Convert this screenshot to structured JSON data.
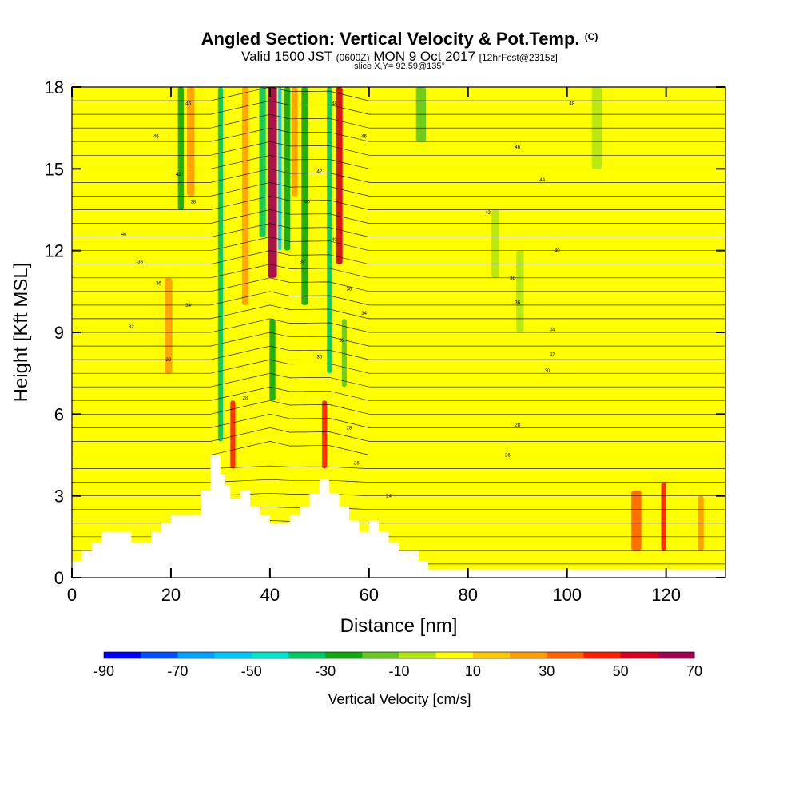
{
  "title": {
    "main": "Angled Section: Vertical Velocity & Pot.Temp.",
    "main_suffix": "(C)",
    "valid_prefix": "Valid 1500 JST",
    "valid_utc": "(0600Z)",
    "valid_date": "MON 9 Oct 2017",
    "forecast": "[12hrFcst@2315z]",
    "slice": "slice X,Y= 92,59@135°"
  },
  "chart_data": {
    "type": "heatmap",
    "xlabel": "Distance [nm]",
    "ylabel": "Height [Kft MSL]",
    "xlim": [
      0,
      132
    ],
    "ylim": [
      0,
      18
    ],
    "xticks": [
      0,
      20,
      40,
      60,
      80,
      100,
      120
    ],
    "yticks": [
      0,
      3,
      6,
      9,
      12,
      15,
      18
    ],
    "colorbar": {
      "label": "Vertical Velocity [cm/s]",
      "ticks": [
        -90,
        -70,
        -50,
        -30,
        -10,
        10,
        30,
        50,
        70
      ],
      "levels": [
        -90,
        -80,
        -70,
        -60,
        -50,
        -40,
        -30,
        -20,
        -10,
        0,
        10,
        20,
        30,
        40,
        50,
        60,
        70
      ],
      "colors": [
        "#0000ff",
        "#0050ff",
        "#00a0ff",
        "#00c8ff",
        "#00e6c8",
        "#00c864",
        "#10a810",
        "#64c820",
        "#b4e614",
        "#ffff00",
        "#ffc800",
        "#ffa000",
        "#ff6400",
        "#ff1e00",
        "#d2001e",
        "#a00050",
        "#500090"
      ]
    },
    "background_color_value": 5,
    "terrain_profile": {
      "x": [
        0,
        2,
        2,
        4,
        4,
        6,
        6,
        12,
        12,
        16,
        16,
        18,
        18,
        20,
        20,
        26,
        26,
        28,
        28,
        30,
        30,
        31,
        31,
        32,
        32,
        34,
        34,
        36,
        36,
        38,
        38,
        40,
        40,
        44,
        44,
        46,
        46,
        48,
        48,
        50,
        50,
        52,
        52,
        54,
        54,
        56,
        56,
        58,
        58,
        60,
        60,
        62,
        62,
        64,
        64,
        66,
        66,
        70,
        70,
        72,
        72,
        132
      ],
      "height": [
        0.6,
        0.6,
        1.0,
        1.0,
        1.3,
        1.3,
        1.7,
        1.7,
        1.3,
        1.3,
        1.7,
        1.7,
        2.0,
        2.0,
        2.3,
        2.3,
        3.2,
        3.2,
        4.5,
        4.5,
        3.8,
        3.8,
        3.4,
        3.4,
        2.9,
        2.9,
        3.2,
        3.2,
        2.6,
        2.6,
        2.3,
        2.3,
        2.0,
        2.0,
        2.3,
        2.3,
        2.6,
        2.6,
        3.1,
        3.1,
        3.6,
        3.6,
        3.1,
        3.1,
        2.6,
        2.6,
        2.1,
        2.1,
        1.7,
        1.7,
        2.1,
        2.1,
        1.7,
        1.7,
        1.3,
        1.3,
        1.0,
        1.0,
        0.6,
        0.6,
        0.3,
        0.3
      ]
    },
    "velocity_features": [
      {
        "x": 19.5,
        "y_min": 7.5,
        "y_max": 11.0,
        "value": 25,
        "width": 1.5
      },
      {
        "x": 22.0,
        "y_min": 13.5,
        "y_max": 18.0,
        "value": -30,
        "width": 1.2
      },
      {
        "x": 24.0,
        "y_min": 14.0,
        "y_max": 18.0,
        "value": 25,
        "width": 1.5
      },
      {
        "x": 30.0,
        "y_min": 5.0,
        "y_max": 18.0,
        "value": -35,
        "width": 1.0
      },
      {
        "x": 32.5,
        "y_min": 4.0,
        "y_max": 6.5,
        "value": 45,
        "width": 1.0
      },
      {
        "x": 35.0,
        "y_min": 10.0,
        "y_max": 18.0,
        "value": 25,
        "width": 1.3
      },
      {
        "x": 38.5,
        "y_min": 12.5,
        "y_max": 18.0,
        "value": -40,
        "width": 1.3
      },
      {
        "x": 40.5,
        "y_min": 11.0,
        "y_max": 18.0,
        "value": 65,
        "width": 1.8
      },
      {
        "x": 40.5,
        "y_min": 6.5,
        "y_max": 9.5,
        "value": -30,
        "width": 1.2
      },
      {
        "x": 42.0,
        "y_min": 12.0,
        "y_max": 18.0,
        "value": -60,
        "width": 0.7
      },
      {
        "x": 43.5,
        "y_min": 12.0,
        "y_max": 18.0,
        "value": -30,
        "width": 1.2
      },
      {
        "x": 45.0,
        "y_min": 14.0,
        "y_max": 18.0,
        "value": 25,
        "width": 1.2
      },
      {
        "x": 47.0,
        "y_min": 10.0,
        "y_max": 18.0,
        "value": -30,
        "width": 1.3
      },
      {
        "x": 51.0,
        "y_min": 4.0,
        "y_max": 6.5,
        "value": 45,
        "width": 1.0
      },
      {
        "x": 52.0,
        "y_min": 7.5,
        "y_max": 18.0,
        "value": -35,
        "width": 1.0
      },
      {
        "x": 54.0,
        "y_min": 11.5,
        "y_max": 18.0,
        "value": 55,
        "width": 1.3
      },
      {
        "x": 55.0,
        "y_min": 7.0,
        "y_max": 9.5,
        "value": -20,
        "width": 1.0
      },
      {
        "x": 70.5,
        "y_min": 16.0,
        "y_max": 18.0,
        "value": -15,
        "width": 2.0
      },
      {
        "x": 85.5,
        "y_min": 11.0,
        "y_max": 13.5,
        "value": -10,
        "width": 1.5
      },
      {
        "x": 90.5,
        "y_min": 9.0,
        "y_max": 12.0,
        "value": -10,
        "width": 1.5
      },
      {
        "x": 106.0,
        "y_min": 15.0,
        "y_max": 18.0,
        "value": -10,
        "width": 2.0
      },
      {
        "x": 114.0,
        "y_min": 1.0,
        "y_max": 3.2,
        "value": 35,
        "width": 2.0
      },
      {
        "x": 119.5,
        "y_min": 1.0,
        "y_max": 3.5,
        "value": 45,
        "width": 1.0
      },
      {
        "x": 127.0,
        "y_min": 1.0,
        "y_max": 3.0,
        "value": 25,
        "width": 1.2
      }
    ],
    "contour_labels": [
      {
        "text": "46",
        "x": 23.5,
        "y": 17.4
      },
      {
        "text": "46",
        "x": 17.0,
        "y": 16.2
      },
      {
        "text": "42",
        "x": 21.5,
        "y": 14.8
      },
      {
        "text": "38",
        "x": 24.5,
        "y": 13.8
      },
      {
        "text": "40",
        "x": 10.5,
        "y": 12.6
      },
      {
        "text": "38",
        "x": 13.8,
        "y": 11.6
      },
      {
        "text": "36",
        "x": 17.5,
        "y": 10.8
      },
      {
        "text": "34",
        "x": 23.5,
        "y": 10.0
      },
      {
        "text": "32",
        "x": 12.0,
        "y": 9.2
      },
      {
        "text": "30",
        "x": 19.5,
        "y": 8.0
      },
      {
        "text": "28",
        "x": 35.0,
        "y": 6.6
      },
      {
        "text": "48",
        "x": 53.0,
        "y": 17.4
      },
      {
        "text": "46",
        "x": 59.0,
        "y": 16.2
      },
      {
        "text": "42",
        "x": 50.0,
        "y": 14.9
      },
      {
        "text": "40",
        "x": 47.5,
        "y": 13.8
      },
      {
        "text": "40",
        "x": 53.0,
        "y": 12.4
      },
      {
        "text": "38",
        "x": 46.5,
        "y": 11.6
      },
      {
        "text": "36",
        "x": 56.0,
        "y": 10.6
      },
      {
        "text": "34",
        "x": 59.0,
        "y": 9.7
      },
      {
        "text": "32",
        "x": 54.5,
        "y": 8.7
      },
      {
        "text": "30",
        "x": 50.0,
        "y": 8.1
      },
      {
        "text": "28",
        "x": 56.0,
        "y": 5.5
      },
      {
        "text": "26",
        "x": 57.5,
        "y": 4.2
      },
      {
        "text": "24",
        "x": 64.0,
        "y": 3.0
      },
      {
        "text": "48",
        "x": 101.0,
        "y": 17.4
      },
      {
        "text": "46",
        "x": 90.0,
        "y": 15.8
      },
      {
        "text": "44",
        "x": 95.0,
        "y": 14.6
      },
      {
        "text": "42",
        "x": 84.0,
        "y": 13.4
      },
      {
        "text": "40",
        "x": 98.0,
        "y": 12.0
      },
      {
        "text": "38",
        "x": 89.0,
        "y": 11.0
      },
      {
        "text": "36",
        "x": 90.0,
        "y": 10.1
      },
      {
        "text": "34",
        "x": 97.0,
        "y": 9.1
      },
      {
        "text": "32",
        "x": 97.0,
        "y": 8.2
      },
      {
        "text": "30",
        "x": 96.0,
        "y": 7.6
      },
      {
        "text": "28",
        "x": 90.0,
        "y": 5.6
      },
      {
        "text": "26",
        "x": 88.0,
        "y": 4.5
      }
    ]
  }
}
